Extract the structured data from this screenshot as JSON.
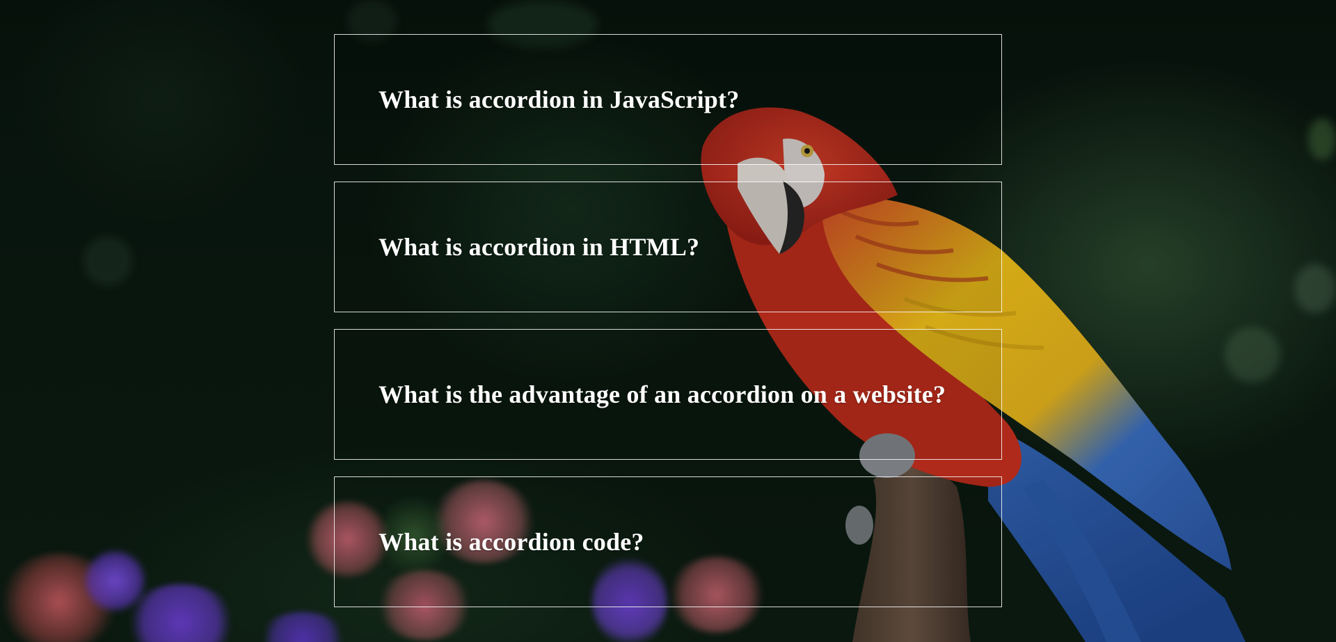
{
  "background": {
    "description_icon": "macaw-parrot-photo",
    "colors": {
      "foliage_dark": "#07120b",
      "parrot_red": "#c8301e",
      "parrot_yellow": "#f2c21a",
      "parrot_blue": "#2e5fb0",
      "flower_purple": "#6b3fd0",
      "flower_pink": "#d46a7a"
    }
  },
  "accordion": {
    "items": [
      {
        "question": "What is accordion in JavaScript?"
      },
      {
        "question": "What is accordion in HTML?"
      },
      {
        "question": "What is the advantage of an accordion on a website?"
      },
      {
        "question": "What is accordion code?"
      }
    ]
  }
}
